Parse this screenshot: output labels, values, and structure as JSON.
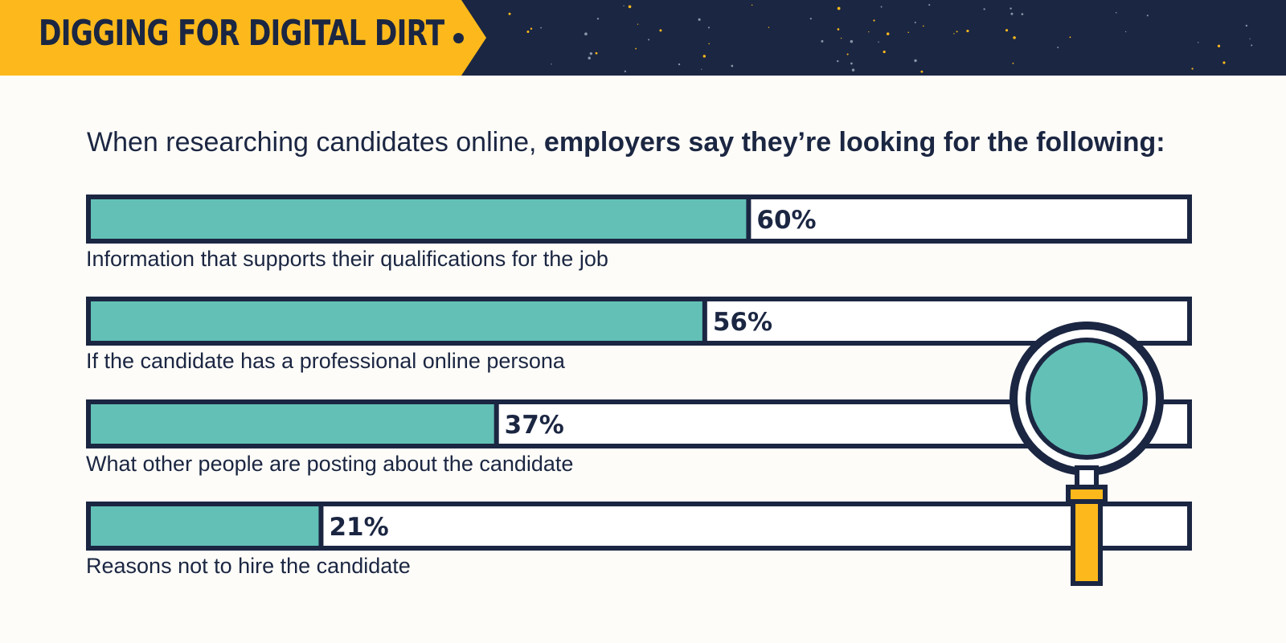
{
  "header": {
    "title": "DIGGING FOR DIGITAL DIRT",
    "background_color": "#1b2642",
    "tab_color": "#fdb91b"
  },
  "subtitle": {
    "light": "When researching candidates online, ",
    "bold": "employers say they’re looking for the following:"
  },
  "colors": {
    "navy": "#1b2642",
    "teal": "#63c0b6",
    "yellow": "#fdb91b",
    "background": "#fdfcf8"
  },
  "decoration": {
    "icon": "magnifying-glass-icon"
  },
  "chart_data": {
    "type": "bar",
    "orientation": "horizontal",
    "categories": [
      "Information that supports their qualifications for the job",
      "If the candidate has a professional online persona",
      "What other people are posting about the candidate",
      "Reasons not to hire the candidate"
    ],
    "values": [
      60,
      56,
      37,
      21
    ],
    "value_labels": [
      "60%",
      "56%",
      "37%",
      "21%"
    ],
    "unit": "%",
    "xlim": [
      0,
      100
    ],
    "grid": false,
    "legend": "none"
  }
}
